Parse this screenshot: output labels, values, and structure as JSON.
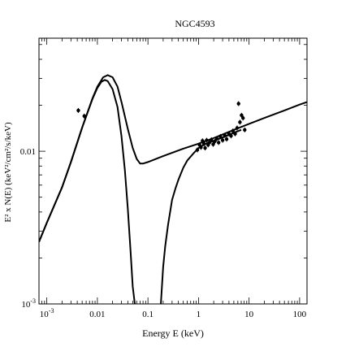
{
  "chart_data": {
    "type": "scatter",
    "title": "NGC4593",
    "xlabel": "Energy E (keV)",
    "ylabel": "E² x N(E) (keV²/cm²/s/keV)",
    "x_scale": "log",
    "y_scale": "log",
    "xlim": [
      0.0007,
      140
    ],
    "ylim": [
      0.001,
      0.055
    ],
    "grid": false,
    "x_ticks": [
      {
        "value": 0.001,
        "base": "10",
        "exp": "-3"
      },
      {
        "value": 0.01,
        "label": "0.01"
      },
      {
        "value": 0.1,
        "label": "0.1"
      },
      {
        "value": 1,
        "label": "1"
      },
      {
        "value": 10,
        "label": "10"
      },
      {
        "value": 100,
        "label": "100"
      }
    ],
    "y_ticks": [
      {
        "value": 0.001,
        "base": "10",
        "exp": "-3"
      },
      {
        "value": 0.01,
        "label": "0.01"
      }
    ],
    "series": [
      {
        "style": "line",
        "x": [
          0.0007,
          0.001,
          0.002,
          0.003,
          0.005,
          0.008,
          0.01,
          0.013,
          0.016,
          0.02,
          0.025,
          0.03,
          0.04,
          0.05,
          0.06,
          0.07,
          0.08,
          0.1,
          0.2,
          0.5,
          1,
          2,
          5,
          10,
          20,
          50,
          100,
          140
        ],
        "y": [
          0.00255,
          0.0034,
          0.0058,
          0.0085,
          0.0143,
          0.0222,
          0.0265,
          0.0305,
          0.0315,
          0.0305,
          0.0265,
          0.021,
          0.014,
          0.0105,
          0.0089,
          0.0083,
          0.0083,
          0.0085,
          0.0093,
          0.0104,
          0.0112,
          0.0122,
          0.0138,
          0.0151,
          0.0165,
          0.0185,
          0.0202,
          0.021
        ]
      },
      {
        "style": "line",
        "x": [
          0.0007,
          0.001,
          0.002,
          0.003,
          0.005,
          0.008,
          0.01,
          0.012,
          0.014,
          0.016,
          0.02,
          0.025,
          0.03,
          0.035,
          0.04,
          0.045,
          0.05,
          0.055
        ],
        "y": [
          0.00255,
          0.0034,
          0.0058,
          0.0085,
          0.0143,
          0.022,
          0.026,
          0.0285,
          0.0293,
          0.0288,
          0.0255,
          0.0195,
          0.0125,
          0.0075,
          0.0042,
          0.0023,
          0.0013,
          0.001
        ]
      },
      {
        "style": "line",
        "x": [
          0.18,
          0.2,
          0.22,
          0.25,
          0.3,
          0.35,
          0.4,
          0.5,
          0.6,
          0.8,
          1,
          1.2,
          1.5,
          2,
          3,
          5,
          7
        ],
        "y": [
          0.001,
          0.00175,
          0.0024,
          0.0033,
          0.0048,
          0.0057,
          0.0065,
          0.0078,
          0.0087,
          0.0097,
          0.0105,
          0.0109,
          0.0113,
          0.0117,
          0.0123,
          0.0132,
          0.0138
        ]
      },
      {
        "style": "points",
        "x": [
          0.0042,
          0.0055,
          0.95,
          1.05,
          1.12,
          1.2,
          1.28,
          1.35,
          1.45,
          1.55,
          1.65,
          1.8,
          1.95,
          2.1,
          2.3,
          2.5,
          2.7,
          3.0,
          3.3,
          3.6,
          4.0,
          4.4,
          4.8,
          5.3,
          5.8,
          6.2,
          6.6,
          7.1,
          7.6,
          8.2
        ],
        "y": [
          0.0185,
          0.017,
          0.0102,
          0.011,
          0.0106,
          0.0117,
          0.0112,
          0.0105,
          0.0118,
          0.011,
          0.0114,
          0.0119,
          0.0111,
          0.0116,
          0.0121,
          0.0114,
          0.0125,
          0.0118,
          0.0127,
          0.012,
          0.013,
          0.0126,
          0.0136,
          0.013,
          0.0142,
          0.0205,
          0.0155,
          0.0172,
          0.0165,
          0.0138
        ]
      }
    ]
  }
}
